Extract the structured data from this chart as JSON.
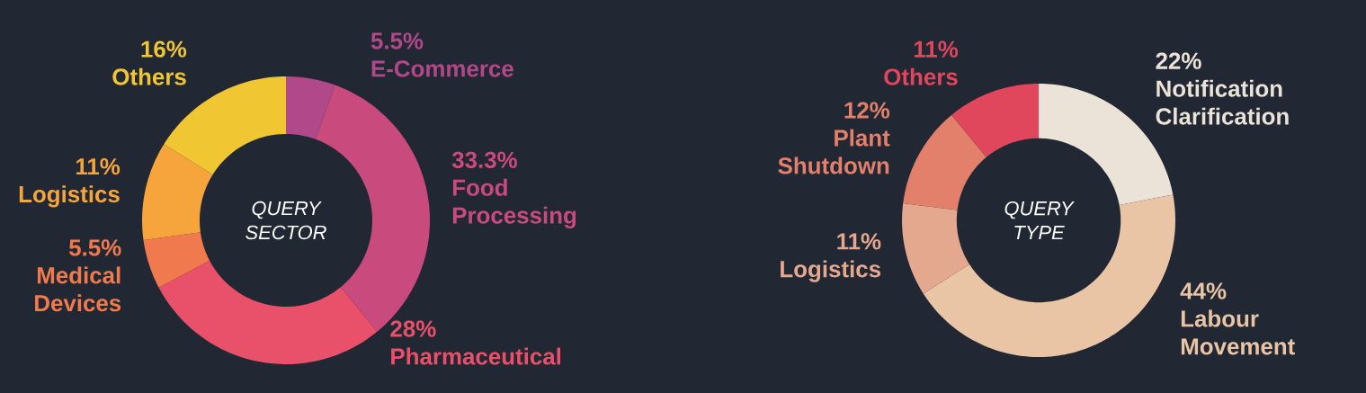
{
  "chart_data": [
    {
      "type": "donut",
      "categories": [
        "E-Commerce",
        "Food Processing",
        "Pharmaceutical",
        "Medical Devices",
        "Logistics",
        "Others"
      ],
      "values": [
        5.5,
        33.3,
        28,
        5.5,
        11,
        16
      ],
      "value_labels": [
        "5.5%",
        "33.3%",
        "28%",
        "5.5%",
        "11%",
        "16%"
      ],
      "colors": [
        "#b0488a",
        "#c94a7c",
        "#e9506a",
        "#f07a4e",
        "#f6a43c",
        "#f0c732"
      ],
      "annotations": [
        "QUERY SECTOR"
      ]
    },
    {
      "type": "donut",
      "categories": [
        "Notification Clarification",
        "Labour Movement",
        "Logistics",
        "Plant Shutdown",
        "Others"
      ],
      "values": [
        22,
        44,
        11,
        12,
        11
      ],
      "value_labels": [
        "22%",
        "44%",
        "11%",
        "12%",
        "11%"
      ],
      "colors": [
        "#ebe2d8",
        "#e9c5a5",
        "#e4a88e",
        "#e2806c",
        "#e0465c"
      ],
      "annotations": [
        "QUERY TYPE"
      ]
    }
  ]
}
